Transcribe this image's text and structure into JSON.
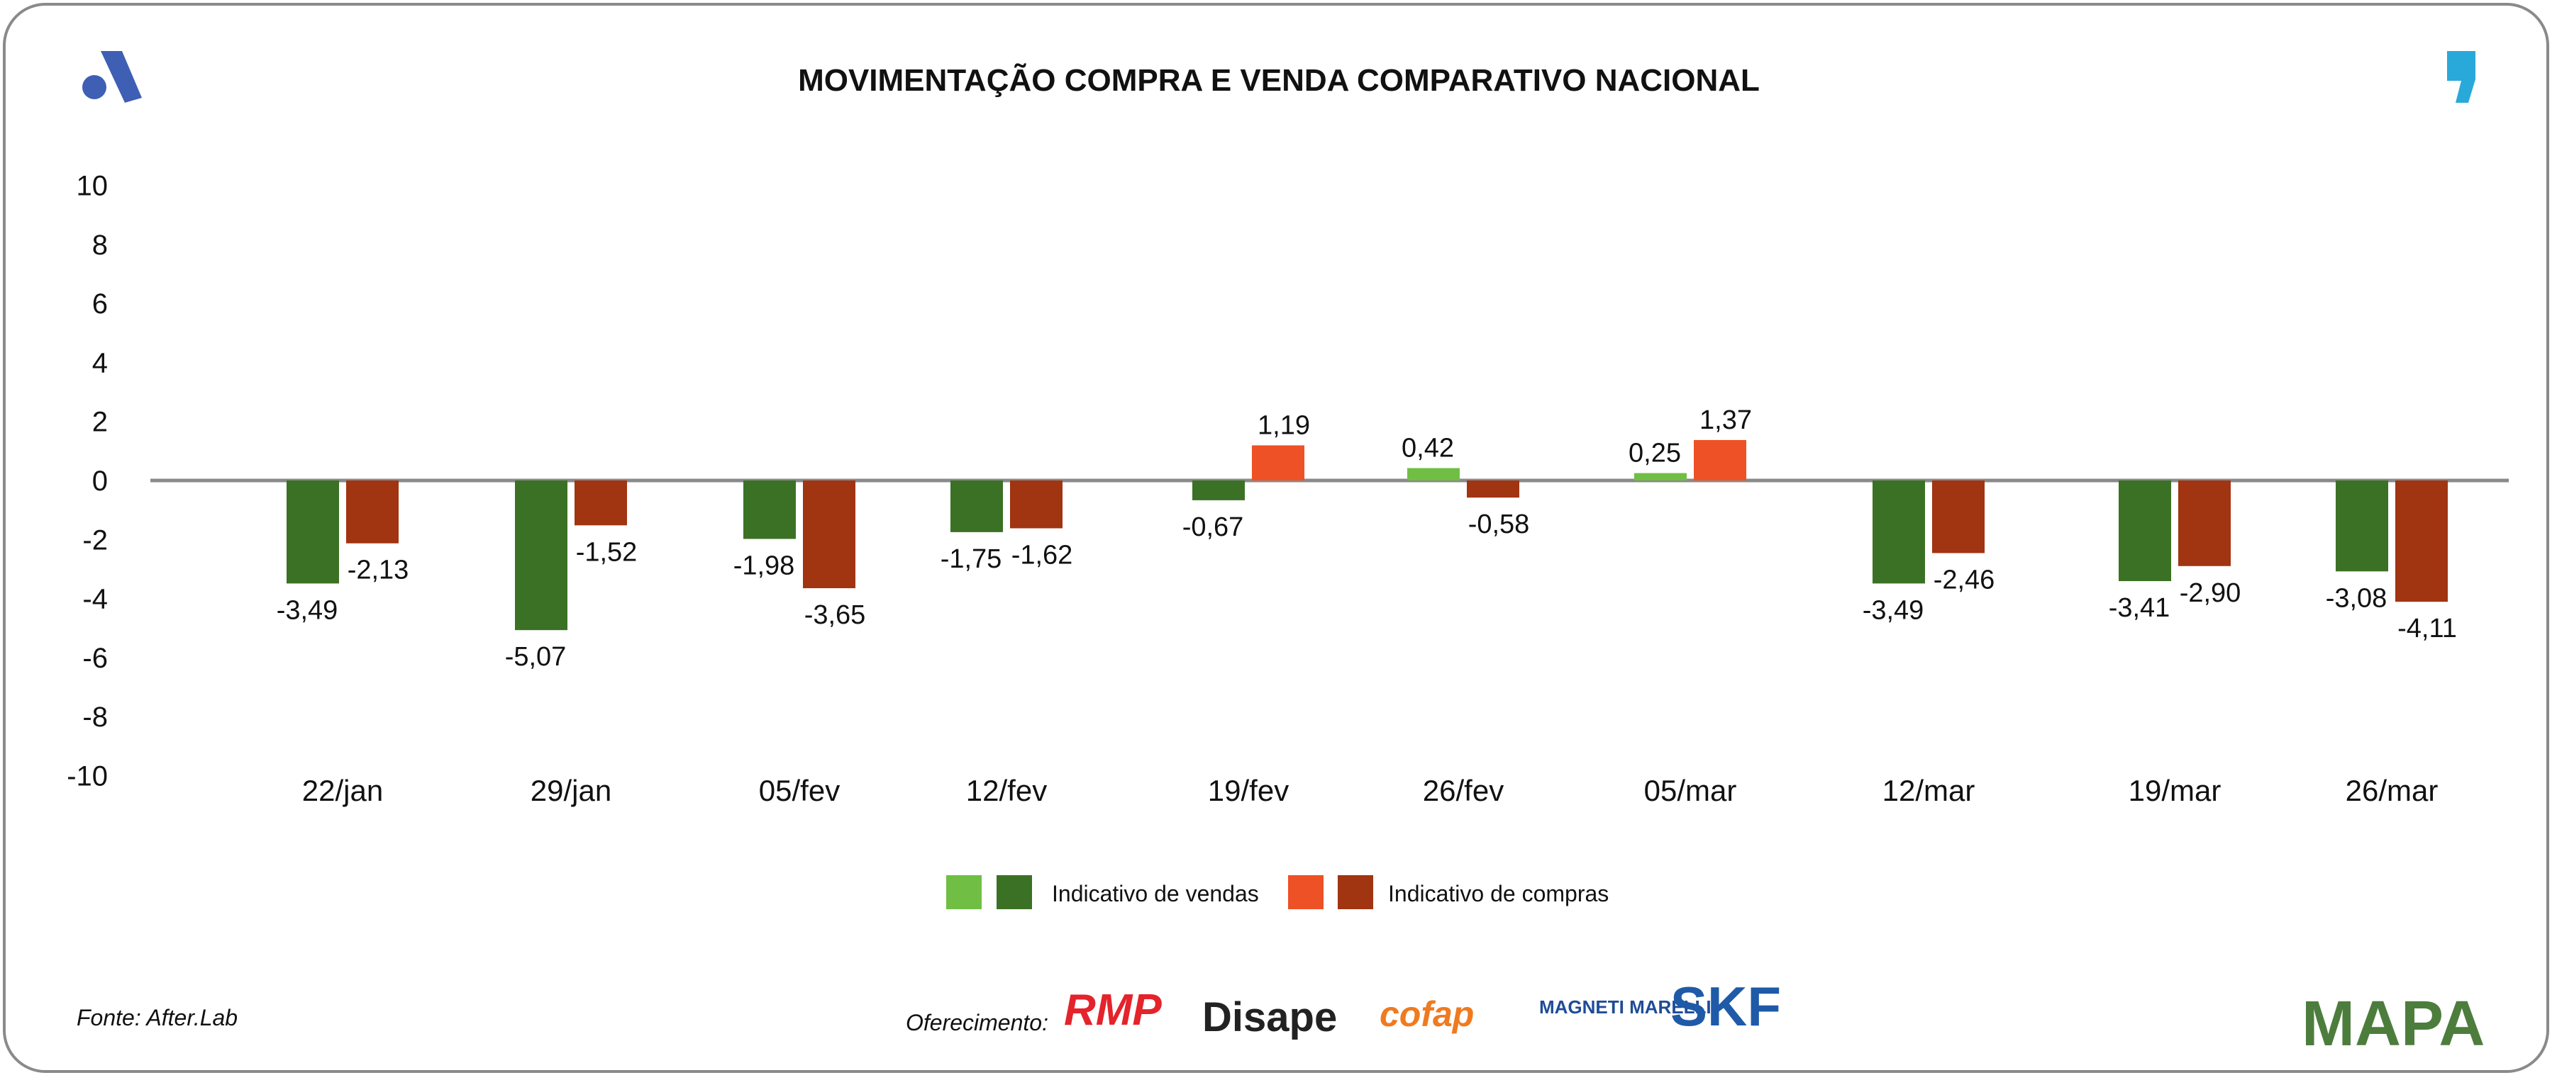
{
  "chart_data": {
    "type": "bar",
    "title": "MOVIMENTAÇÃO COMPRA E VENDA COMPARATIVO NACIONAL",
    "categories": [
      "22/jan",
      "29/jan",
      "05/fev",
      "12/fev",
      "19/fev",
      "26/fev",
      "05/mar",
      "12/mar",
      "19/mar",
      "26/mar"
    ],
    "series": [
      {
        "name": "Indicativo de vendas",
        "values": [
          -3.49,
          -5.07,
          -1.98,
          -1.75,
          -0.67,
          0.42,
          0.25,
          -3.49,
          -3.41,
          -3.08
        ],
        "labels": [
          "-3,49",
          "-5,07",
          "-1,98",
          "-1,75",
          "-0,67",
          "0,42",
          "0,25",
          "-3,49",
          "-3,41",
          "-3,08"
        ],
        "color_positive": "#70bf44",
        "color_negative": "#3b7124"
      },
      {
        "name": "Indicativo de compras",
        "values": [
          -2.13,
          -1.52,
          -3.65,
          -1.62,
          1.19,
          -0.58,
          1.37,
          -2.46,
          -2.9,
          -4.11
        ],
        "labels": [
          "-2,13",
          "-1,52",
          "-3,65",
          "-1,62",
          "1,19",
          "-0,58",
          "1,37",
          "-2,46",
          "-2,90",
          "-4,11"
        ],
        "color_positive": "#ee5125",
        "color_negative": "#a13411"
      }
    ],
    "yticks": [
      "10",
      "8",
      "6",
      "4",
      "2",
      "0",
      "-2",
      "-4",
      "-6",
      "-8",
      "-10"
    ],
    "ylim": [
      -10,
      10
    ],
    "grid": false,
    "legend": "bottom-center"
  },
  "footer": {
    "source": "Fonte: After.Lab",
    "sponsor_label": "Oferecimento:",
    "sponsors": [
      "RMP",
      "Disape",
      "cofap",
      "MAGNETI MARELLI",
      "SKF"
    ],
    "mapa_logo": "MAPA"
  },
  "colors": {
    "logo_left": "#3f5fb5",
    "logo_right": "#29a9d9",
    "axis": "#8a8a8a"
  }
}
